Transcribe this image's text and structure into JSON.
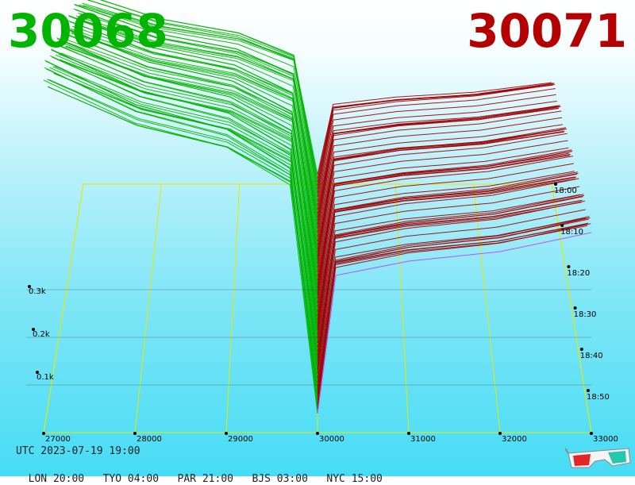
{
  "header": {
    "bid_price": "30068",
    "ask_price": "30071",
    "bid_color": "#00b400",
    "ask_color": "#b40000"
  },
  "footer": {
    "utc_label": "UTC 2023-07-19 19:00",
    "zones": [
      {
        "city": "LON",
        "time": "20:00"
      },
      {
        "city": "TYO",
        "time": "04:00"
      },
      {
        "city": "PAR",
        "time": "21:00"
      },
      {
        "city": "BJS",
        "time": "03:00"
      },
      {
        "city": "NYC",
        "time": "15:00"
      }
    ]
  },
  "icons": {
    "footer_icon": "3d-glasses-icon"
  },
  "chart_data": {
    "type": "area",
    "title": "",
    "xlabel": "",
    "ylabel": "",
    "x_ticks": [
      27000,
      28000,
      29000,
      30000,
      31000,
      32000,
      33000
    ],
    "x_tick_labels": [
      "27000",
      "28000",
      "29000",
      "30000",
      "31000",
      "32000",
      "33000"
    ],
    "xlim": [
      27000,
      33000
    ],
    "y_ticks_labels": [
      "0.1k",
      "0.2k",
      "0.3k"
    ],
    "y_ticks": [
      100,
      200,
      300
    ],
    "time_ticks": [
      "18:00",
      "18:10",
      "18:20",
      "18:30",
      "18:40",
      "18:50"
    ],
    "mid_price": 30070,
    "bid_profile": [
      {
        "price": 27000,
        "depth": 740
      },
      {
        "price": 28000,
        "depth": 650
      },
      {
        "price": 29000,
        "depth": 600
      },
      {
        "price": 29700,
        "depth": 520
      },
      {
        "price": 30000,
        "depth": 40
      }
    ],
    "ask_profile": [
      {
        "price": 30000,
        "depth": 40
      },
      {
        "price": 30200,
        "depth": 330
      },
      {
        "price": 31000,
        "depth": 360
      },
      {
        "price": 32000,
        "depth": 380
      },
      {
        "price": 33000,
        "depth": 420
      }
    ],
    "bid_color": "#00b400",
    "ask_color": "#a00000",
    "latest_ask_color": "#c040ff",
    "grid_color": "#e8e800"
  }
}
